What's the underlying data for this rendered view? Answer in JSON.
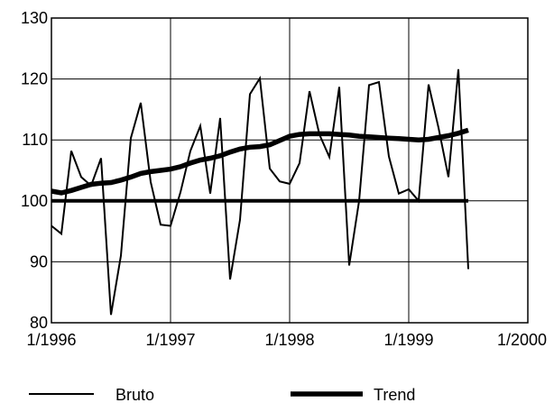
{
  "chart_data": {
    "type": "line",
    "title": "",
    "xlabel": "",
    "ylabel": "",
    "x_ticks": [
      "1/1996",
      "1/1997",
      "1/1998",
      "1/1999",
      "1/2000"
    ],
    "xlim": [
      1996.0,
      2000.0
    ],
    "y_ticks": [
      80,
      90,
      100,
      110,
      120,
      130
    ],
    "ylim": [
      80,
      130
    ],
    "grid": true,
    "legend_position": "bottom",
    "reference_line": {
      "y": 100,
      "x_range": [
        1996.0,
        1999.5
      ]
    },
    "series": [
      {
        "name": "Bruto",
        "style": "thin",
        "x": [
          1996.0,
          1996.083,
          1996.167,
          1996.25,
          1996.333,
          1996.417,
          1996.5,
          1996.583,
          1996.667,
          1996.75,
          1996.833,
          1996.917,
          1997.0,
          1997.083,
          1997.167,
          1997.25,
          1997.333,
          1997.417,
          1997.5,
          1997.583,
          1997.667,
          1997.75,
          1997.833,
          1997.917,
          1998.0,
          1998.083,
          1998.167,
          1998.25,
          1998.333,
          1998.417,
          1998.5,
          1998.583,
          1998.667,
          1998.75,
          1998.833,
          1998.917,
          1999.0,
          1999.083,
          1999.167,
          1999.25,
          1999.333,
          1999.417,
          1999.5
        ],
        "y": [
          95.9,
          94.6,
          108.2,
          103.9,
          102.5,
          107.0,
          81.3,
          91.0,
          110.3,
          116.1,
          103.1,
          96.1,
          95.9,
          101.4,
          108.2,
          112.3,
          101.2,
          113.6,
          87.1,
          96.9,
          117.5,
          120.1,
          105.3,
          103.2,
          102.8,
          106.2,
          118.0,
          110.9,
          107.2,
          118.7,
          89.4,
          100.0,
          119.0,
          119.5,
          107.3,
          101.2,
          101.9,
          100.0,
          119.1,
          112.0,
          103.9,
          121.6,
          88.8
        ]
      },
      {
        "name": "Trend",
        "style": "thick",
        "x": [
          1996.0,
          1996.083,
          1996.167,
          1996.25,
          1996.333,
          1996.417,
          1996.5,
          1996.583,
          1996.667,
          1996.75,
          1996.833,
          1996.917,
          1997.0,
          1997.083,
          1997.167,
          1997.25,
          1997.333,
          1997.417,
          1997.5,
          1997.583,
          1997.667,
          1997.75,
          1997.833,
          1997.917,
          1998.0,
          1998.083,
          1998.167,
          1998.25,
          1998.333,
          1998.417,
          1998.5,
          1998.583,
          1998.667,
          1998.75,
          1998.833,
          1998.917,
          1999.0,
          1999.083,
          1999.167,
          1999.25,
          1999.333,
          1999.417,
          1999.5
        ],
        "y": [
          101.6,
          101.3,
          101.7,
          102.2,
          102.7,
          102.9,
          103.0,
          103.4,
          103.9,
          104.5,
          104.8,
          105.0,
          105.2,
          105.6,
          106.2,
          106.7,
          107.0,
          107.4,
          108.0,
          108.5,
          108.8,
          108.9,
          109.2,
          109.9,
          110.6,
          110.9,
          111.0,
          111.0,
          111.0,
          110.9,
          110.8,
          110.6,
          110.5,
          110.4,
          110.3,
          110.2,
          110.1,
          110.0,
          110.1,
          110.4,
          110.7,
          111.1,
          111.6
        ]
      }
    ]
  }
}
